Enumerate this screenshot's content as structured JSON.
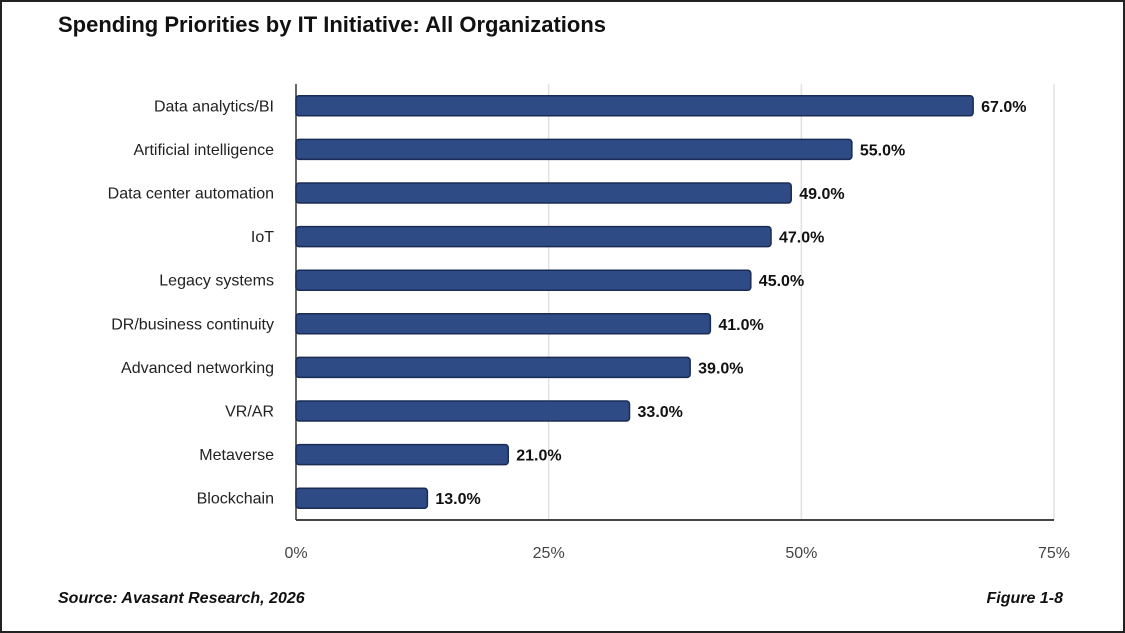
{
  "chart_data": {
    "type": "bar",
    "orientation": "horizontal",
    "title": "Spending Priorities by IT Initiative: All Organizations",
    "categories": [
      "Data analytics/BI",
      "Artificial intelligence",
      "Data center automation",
      "IoT",
      "Legacy systems",
      "DR/business continuity",
      "Advanced networking",
      "VR/AR",
      "Metaverse",
      "Blockchain"
    ],
    "values": [
      67.0,
      55.0,
      49.0,
      47.0,
      45.0,
      41.0,
      39.0,
      33.0,
      21.0,
      13.0
    ],
    "value_labels": [
      "67.0%",
      "55.0%",
      "49.0%",
      "47.0%",
      "45.0%",
      "41.0%",
      "39.0%",
      "33.0%",
      "21.0%",
      "13.0%"
    ],
    "xlabel": "",
    "ylabel": "",
    "xlim": [
      0,
      75
    ],
    "xticks": [
      0,
      25,
      50,
      75
    ],
    "xtick_labels": [
      "0%",
      "25%",
      "50%",
      "75%"
    ],
    "grid": true,
    "bar_color": "#2f4b85"
  },
  "footer": {
    "source": "Source: Avasant Research, 2026",
    "figure": "Figure 1-8"
  }
}
